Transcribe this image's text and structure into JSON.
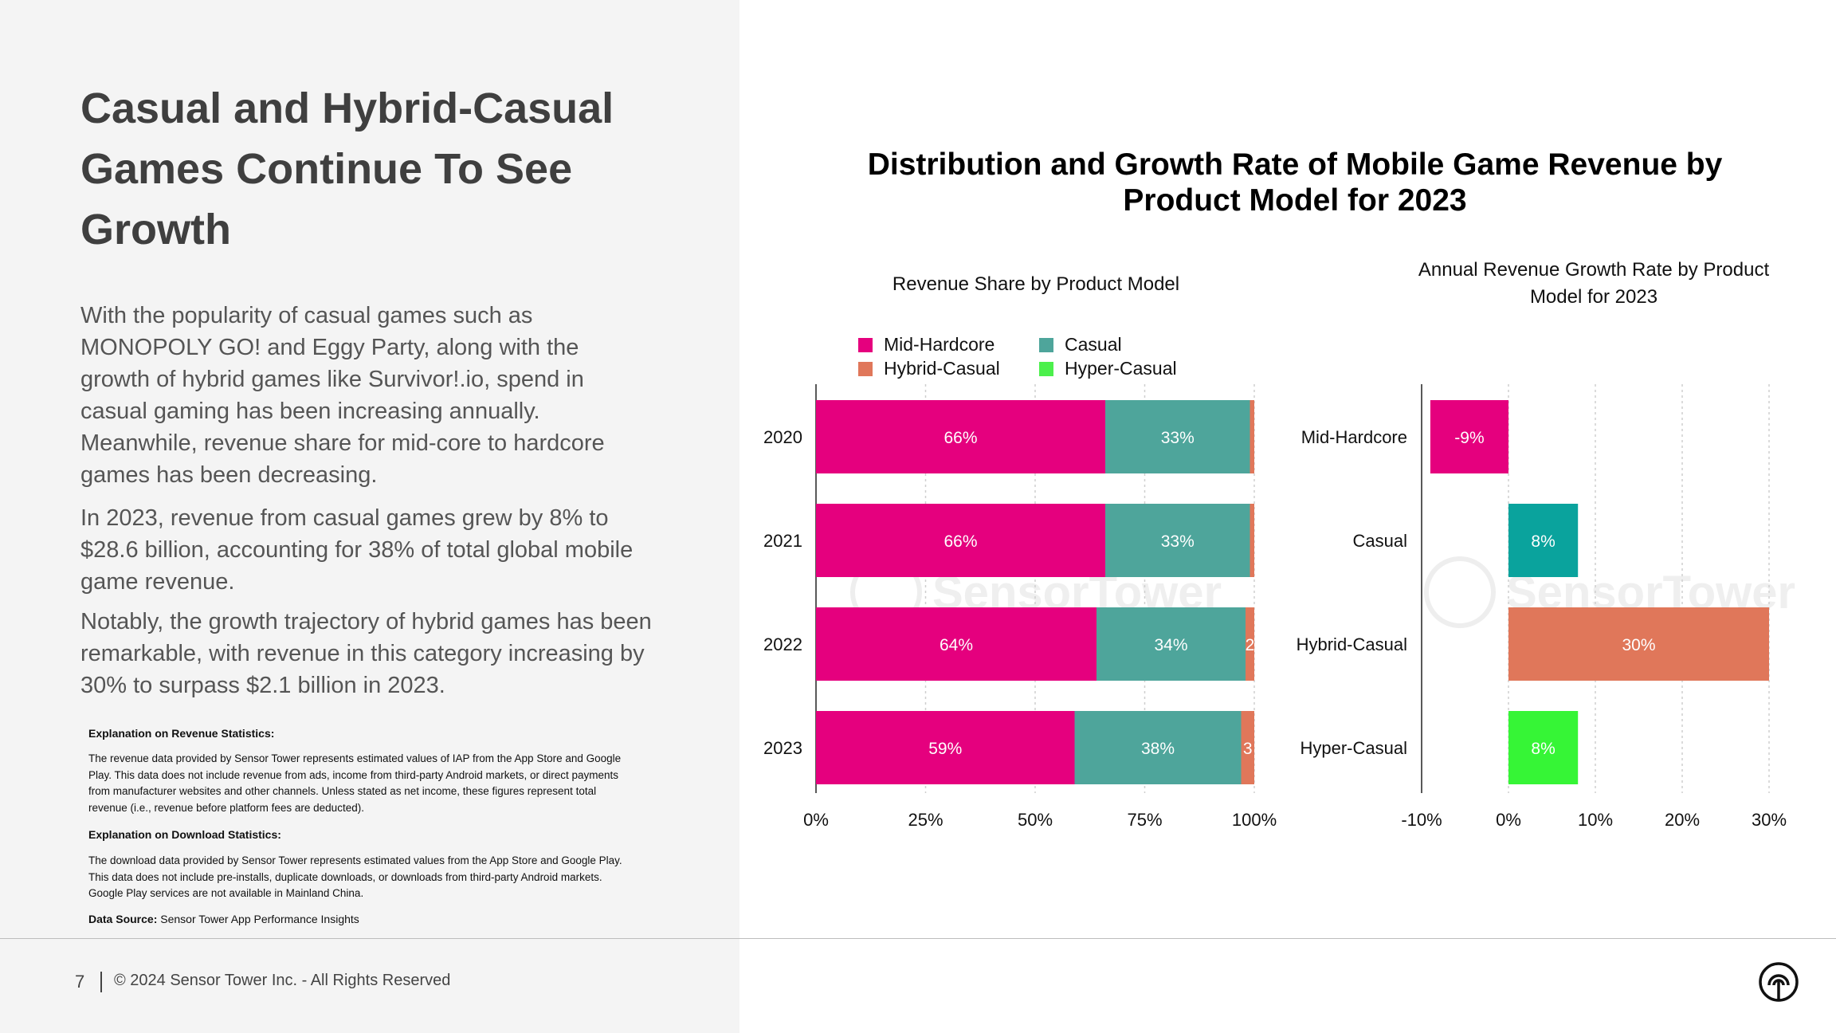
{
  "slide": {
    "title": "Casual and Hybrid-Casual Games Continue To See Growth",
    "paragraphs": [
      "With the popularity of casual games such as MONOPOLY GO! and Eggy Party, along with the growth of hybrid games like Survivor!.io, spend in casual gaming has been increasing annually. Meanwhile, revenue share for mid-core to hardcore games has been decreasing.",
      "In 2023, revenue from casual games grew by 8% to $28.6 billion, accounting for 38% of total global mobile game revenue.",
      "Notably, the growth trajectory of hybrid games has been remarkable, with revenue in this category increasing by 30% to surpass $2.1 billion in 2023."
    ],
    "notes": {
      "revenue_heading": "Explanation on Revenue Statistics:",
      "revenue_text": "The revenue data provided by Sensor Tower represents estimated values of IAP  from the App Store and Google Play. This data does not include revenue from ads, income from third-party Android markets, or direct payments from manufacturer websites and other channels. Unless stated as net income, these figures represent total revenue (i.e., revenue before platform fees are deducted).",
      "download_heading": "Explanation on Download Statistics:",
      "download_text": "The download data provided by Sensor Tower represents estimated values from the App Store and Google Play. This data does not include pre-installs, duplicate downloads, or downloads from third-party Android markets. Google Play services are not available in Mainland China.",
      "data_source_label": "Data Source:",
      "data_source_value": "Sensor Tower App Performance Insights"
    },
    "footer": {
      "page_number": "7",
      "copyright": "© 2024 Sensor Tower Inc. - All Rights Reserved"
    },
    "logo_icon": "sensor-tower-logo-icon",
    "watermark": "SensorTower"
  },
  "chart_data": [
    {
      "type": "bar",
      "orientation": "horizontal",
      "stacked": true,
      "title": "Distribution and Growth Rate of Mobile Game Revenue by Product Model for 2023",
      "subtitle": "Revenue Share by Product Model",
      "categories": [
        "2020",
        "2021",
        "2022",
        "2023"
      ],
      "series": [
        {
          "name": "Mid-Hardcore",
          "color": "#e5007e",
          "values": [
            66,
            66,
            64,
            59
          ],
          "labels": [
            "66%",
            "66%",
            "64%",
            "59%"
          ]
        },
        {
          "name": "Casual",
          "color": "#4ea59b",
          "values": [
            33,
            33,
            34,
            38
          ],
          "labels": [
            "33%",
            "33%",
            "34%",
            "38%"
          ]
        },
        {
          "name": "Hybrid-Casual",
          "color": "#e0775a",
          "values": [
            1,
            1,
            2,
            3
          ],
          "labels": [
            "",
            "",
            "2",
            "3"
          ]
        },
        {
          "name": "Hyper-Casual",
          "color": "#4cf04c",
          "values": [
            0,
            0,
            0,
            0
          ],
          "labels": [
            "",
            "",
            "",
            ""
          ]
        }
      ],
      "xlim": [
        0,
        100
      ],
      "xticks": [
        "0%",
        "25%",
        "50%",
        "75%",
        "100%"
      ],
      "grid": true,
      "legend_position": "top-left"
    },
    {
      "type": "bar",
      "orientation": "horizontal",
      "subtitle": "Annual Revenue Growth Rate by Product Model for 2023",
      "categories": [
        "Mid-Hardcore",
        "Casual",
        "Hybrid-Casual",
        "Hyper-Casual"
      ],
      "values": [
        -9,
        8,
        30,
        8
      ],
      "labels": [
        "-9%",
        "8%",
        "30%",
        "8%"
      ],
      "colors": [
        "#e5007e",
        "#0aa39d",
        "#e0775a",
        "#36f536"
      ],
      "xlim": [
        -10,
        30
      ],
      "xticks": [
        "-10%",
        "0%",
        "10%",
        "20%",
        "30%"
      ],
      "grid": true
    }
  ]
}
